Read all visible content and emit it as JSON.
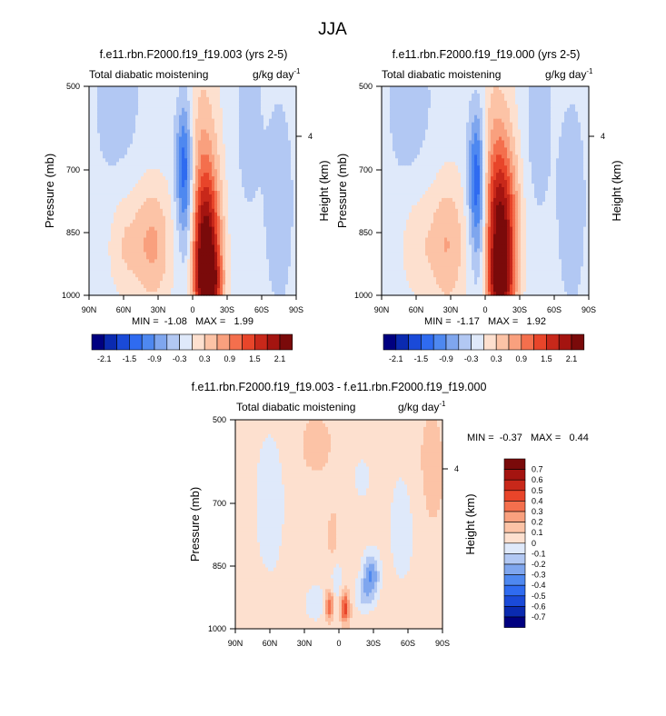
{
  "figure": {
    "title": "JJA"
  },
  "chart_data": [
    {
      "type": "heatmap",
      "panel": "top-left",
      "title": "f.e11.rbn.F2000.f19_f19.003 (yrs 2-5)",
      "left_string": "Total diabatic moistening",
      "units": "g/kg day",
      "units_exp": "-1",
      "xlabel": "",
      "ylabel": "Pressure (mb)",
      "ylabel_right": "Height (km)",
      "x_ticks": [
        "90N",
        "60N",
        "30N",
        "0",
        "30S",
        "60S",
        "90S"
      ],
      "x_values": [
        90,
        60,
        30,
        0,
        -30,
        -60,
        -90
      ],
      "y_ticks": [
        "500",
        "700",
        "850",
        "1000"
      ],
      "y_values": [
        500,
        700,
        850,
        1000
      ],
      "y_right_ticks": [
        "4"
      ],
      "min_max": "MIN =  -1.08   MAX =   1.99",
      "stats": {
        "min": -1.08,
        "max": 1.99
      },
      "features": [
        {
          "lat": -12,
          "p": 890,
          "value": 1.8,
          "wlat": 9,
          "wp": 120
        },
        {
          "lat": -14,
          "p": 980,
          "value": 1.5,
          "wlat": 8,
          "wp": 60
        },
        {
          "lat": -10,
          "p": 800,
          "value": 0.8,
          "wlat": 9,
          "wp": 180
        },
        {
          "lat": 8,
          "p": 690,
          "value": -1.05,
          "wlat": 5,
          "wp": 110
        },
        {
          "lat": 4,
          "p": 800,
          "value": -0.55,
          "wlat": 5,
          "wp": 180
        },
        {
          "lat": 35,
          "p": 880,
          "value": 0.85,
          "wlat": 12,
          "wp": 110
        },
        {
          "lat": 60,
          "p": 880,
          "value": 0.45,
          "wlat": 10,
          "wp": 90
        },
        {
          "lat": -5,
          "p": 560,
          "value": 0.3,
          "wlat": 14,
          "wp": 150
        },
        {
          "lat": -48,
          "p": 580,
          "value": -0.2,
          "wlat": 8,
          "wp": 160
        },
        {
          "lat": -75,
          "p": 780,
          "value": -0.2,
          "wlat": 10,
          "wp": 200
        },
        {
          "lat": 65,
          "p": 560,
          "value": -0.2,
          "wlat": 15,
          "wp": 150
        }
      ]
    },
    {
      "type": "heatmap",
      "panel": "top-right",
      "title": "f.e11.rbn.F2000.f19_f19.000 (yrs 2-5)",
      "left_string": "Total diabatic moistening",
      "units": "g/kg day",
      "units_exp": "-1",
      "xlabel": "",
      "ylabel": "Pressure (mb)",
      "ylabel_right": "Height (km)",
      "x_ticks": [
        "90N",
        "60N",
        "30N",
        "0",
        "30S",
        "60S",
        "90S"
      ],
      "x_values": [
        90,
        60,
        30,
        0,
        -30,
        -60,
        -90
      ],
      "y_ticks": [
        "500",
        "700",
        "850",
        "1000"
      ],
      "y_values": [
        500,
        700,
        850,
        1000
      ],
      "y_right_ticks": [
        "4"
      ],
      "min_max": "MIN =  -1.17   MAX =   1.92",
      "stats": {
        "min": -1.17,
        "max": 1.92
      },
      "features": [
        {
          "lat": -14,
          "p": 860,
          "value": 1.75,
          "wlat": 10,
          "wp": 130
        },
        {
          "lat": -13,
          "p": 980,
          "value": 1.3,
          "wlat": 8,
          "wp": 60
        },
        {
          "lat": -12,
          "p": 780,
          "value": 0.8,
          "wlat": 10,
          "wp": 170
        },
        {
          "lat": 8,
          "p": 720,
          "value": -1.15,
          "wlat": 5,
          "wp": 120
        },
        {
          "lat": 4,
          "p": 820,
          "value": -0.55,
          "wlat": 5,
          "wp": 170
        },
        {
          "lat": 33,
          "p": 880,
          "value": 0.8,
          "wlat": 12,
          "wp": 120
        },
        {
          "lat": 60,
          "p": 880,
          "value": 0.4,
          "wlat": 10,
          "wp": 90
        },
        {
          "lat": -5,
          "p": 560,
          "value": 0.3,
          "wlat": 14,
          "wp": 150
        },
        {
          "lat": -45,
          "p": 580,
          "value": -0.25,
          "wlat": 8,
          "wp": 160
        },
        {
          "lat": -75,
          "p": 780,
          "value": -0.2,
          "wlat": 10,
          "wp": 200
        },
        {
          "lat": 65,
          "p": 560,
          "value": -0.2,
          "wlat": 15,
          "wp": 150
        }
      ]
    },
    {
      "type": "heatmap",
      "panel": "bottom",
      "title": "f.e11.rbn.F2000.f19_f19.003 - f.e11.rbn.F2000.f19_f19.000",
      "left_string": "Total diabatic moistening",
      "units": "g/kg day",
      "units_exp": "-1",
      "xlabel": "",
      "ylabel": "Pressure (mb)",
      "ylabel_right": "Height (km)",
      "x_ticks": [
        "90N",
        "60N",
        "30N",
        "0",
        "30S",
        "60S",
        "90S"
      ],
      "x_values": [
        90,
        60,
        30,
        0,
        -30,
        -60,
        -90
      ],
      "y_ticks": [
        "500",
        "700",
        "850",
        "1000"
      ],
      "y_values": [
        500,
        700,
        850,
        1000
      ],
      "y_right_ticks": [
        "4"
      ],
      "min_max": "MIN =  -0.37   MAX =   0.44",
      "stats": {
        "min": -0.37,
        "max": 0.44
      },
      "features": [
        {
          "lat": -5,
          "p": 950,
          "value": 0.42,
          "wlat": 3,
          "wp": 25
        },
        {
          "lat": 8,
          "p": 945,
          "value": 0.38,
          "wlat": 3,
          "wp": 25
        },
        {
          "lat": -28,
          "p": 870,
          "value": -0.35,
          "wlat": 5,
          "wp": 35
        },
        {
          "lat": -22,
          "p": 920,
          "value": -0.18,
          "wlat": 6,
          "wp": 30
        },
        {
          "lat": 2,
          "p": 900,
          "value": -0.12,
          "wlat": 4,
          "wp": 60
        },
        {
          "lat": 20,
          "p": 940,
          "value": -0.12,
          "wlat": 8,
          "wp": 35
        },
        {
          "lat": 5,
          "p": 780,
          "value": 0.12,
          "wlat": 3,
          "wp": 40
        },
        {
          "lat": 60,
          "p": 700,
          "value": -0.1,
          "wlat": 12,
          "wp": 160
        },
        {
          "lat": -55,
          "p": 760,
          "value": -0.1,
          "wlat": 10,
          "wp": 120
        },
        {
          "lat": -20,
          "p": 640,
          "value": -0.07,
          "wlat": 10,
          "wp": 80
        },
        {
          "lat": 20,
          "p": 560,
          "value": 0.07,
          "wlat": 12,
          "wp": 60
        },
        {
          "lat": -80,
          "p": 620,
          "value": 0.07,
          "wlat": 10,
          "wp": 120
        }
      ]
    }
  ],
  "colorbars": {
    "top": {
      "levels": [
        -2.1,
        -1.8,
        -1.5,
        -1.2,
        -0.9,
        -0.6,
        -0.3,
        0,
        0.3,
        0.6,
        0.9,
        1.2,
        1.5,
        1.8,
        2.1
      ],
      "labels": [
        "-2.1",
        "-1.5",
        "-0.9",
        "-0.3",
        "0.3",
        "0.9",
        "1.5",
        "2.1"
      ],
      "colors": [
        "#000080",
        "#0a2ab0",
        "#1a4ad8",
        "#2f6bf0",
        "#4e88f0",
        "#7fa6ee",
        "#b2c8f3",
        "#dfe9fa",
        "#fde0cf",
        "#fcc3a6",
        "#f9a07e",
        "#f46f4d",
        "#e8452a",
        "#c8281a",
        "#a41410",
        "#7a0a0a"
      ]
    },
    "diff": {
      "levels": [
        -0.7,
        -0.6,
        -0.5,
        -0.4,
        -0.3,
        -0.2,
        -0.1,
        0,
        0.1,
        0.2,
        0.3,
        0.4,
        0.5,
        0.6,
        0.7
      ],
      "labels": [
        "0.7",
        "0.6",
        "0.5",
        "0.4",
        "0.3",
        "0.2",
        "0.1",
        "0",
        "-0.1",
        "-0.2",
        "-0.3",
        "-0.4",
        "-0.5",
        "-0.6",
        "-0.7"
      ],
      "colors": [
        "#000080",
        "#0a2ab0",
        "#1a4ad8",
        "#2f6bf0",
        "#4e88f0",
        "#7fa6ee",
        "#b2c8f3",
        "#dfe9fa",
        "#fde0cf",
        "#fcc3a6",
        "#f9a07e",
        "#f46f4d",
        "#e8452a",
        "#c8281a",
        "#a41410",
        "#7a0a0a"
      ]
    }
  }
}
